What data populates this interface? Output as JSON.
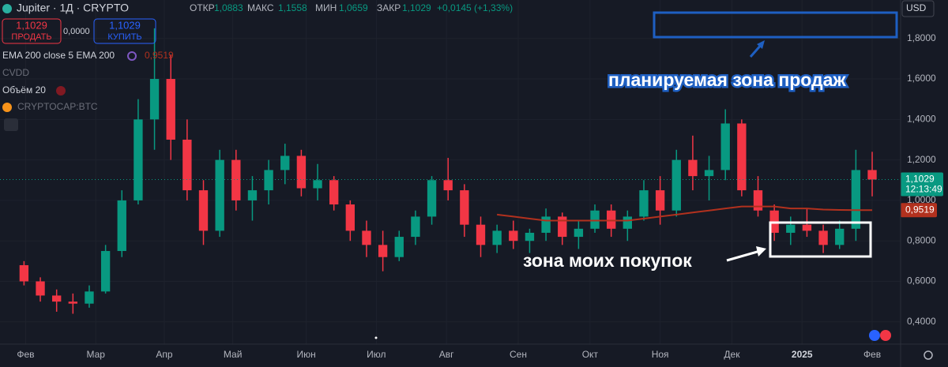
{
  "header": {
    "symbol": "Jupiter · 1Д · CRYPTO",
    "open_label": "ОТКР",
    "open": "1,0883",
    "high_label": "МАКС",
    "high": "1,1558",
    "low_label": "МИН",
    "low": "1,0659",
    "close_label": "ЗАКР",
    "close": "1,1029",
    "change": "+0,0145 (+1,33%)",
    "currency": "USD"
  },
  "trade": {
    "sell_price": "1,1029",
    "sell": "ПРОДАТЬ",
    "spread": "0,0000",
    "buy_price": "1,1029",
    "buy": "КУПИТЬ"
  },
  "indicators": [
    "CVDD",
    "Объём 20",
    "CRYPTOCAP:BTC"
  ],
  "chart_data": {
    "type": "candlestick",
    "open": [
      0.68,
      0.6,
      0.53,
      0.5,
      0.49,
      0.55,
      0.75,
      1.0,
      1.4,
      1.6,
      1.3,
      1.05,
      0.85,
      1.2,
      1.0,
      1.05,
      1.15,
      1.22,
      1.06,
      1.1,
      0.98,
      0.85,
      0.78,
      0.72,
      0.82,
      0.92,
      1.1,
      1.05,
      0.88,
      0.78,
      0.85,
      0.8,
      0.84,
      0.92,
      0.82,
      0.86,
      0.95,
      0.86,
      0.92,
      1.05,
      0.95,
      1.2,
      1.12,
      1.15,
      1.38,
      1.05,
      0.95,
      0.84,
      0.88,
      0.85,
      0.78,
      0.86,
      1.15
    ],
    "high": [
      0.7,
      0.62,
      0.56,
      0.54,
      0.58,
      0.78,
      1.05,
      1.5,
      1.85,
      1.72,
      1.4,
      1.1,
      1.25,
      1.25,
      1.12,
      1.2,
      1.28,
      1.25,
      1.18,
      1.12,
      1.0,
      0.9,
      0.85,
      0.85,
      0.95,
      1.12,
      1.21,
      1.08,
      0.92,
      0.88,
      0.9,
      0.86,
      0.96,
      0.94,
      0.9,
      0.98,
      0.98,
      0.95,
      1.1,
      1.12,
      1.25,
      1.32,
      1.22,
      1.45,
      1.4,
      1.12,
      0.98,
      0.92,
      0.96,
      0.88,
      0.9,
      1.25,
      1.24
    ],
    "low": [
      0.58,
      0.5,
      0.45,
      0.44,
      0.47,
      0.54,
      0.72,
      0.98,
      1.25,
      1.2,
      1.0,
      0.78,
      0.82,
      0.95,
      0.9,
      0.98,
      1.08,
      1.02,
      1.0,
      0.95,
      0.8,
      0.72,
      0.65,
      0.7,
      0.78,
      0.88,
      1.0,
      0.82,
      0.72,
      0.74,
      0.76,
      0.74,
      0.8,
      0.78,
      0.76,
      0.84,
      0.82,
      0.8,
      0.9,
      0.88,
      0.92,
      1.05,
      1.0,
      1.1,
      1.02,
      0.92,
      0.8,
      0.78,
      0.82,
      0.74,
      0.76,
      0.8,
      1.02
    ],
    "close": [
      0.6,
      0.53,
      0.5,
      0.49,
      0.55,
      0.75,
      1.0,
      1.4,
      1.6,
      1.3,
      1.05,
      0.85,
      1.2,
      1.0,
      1.05,
      1.15,
      1.22,
      1.06,
      1.1,
      0.98,
      0.85,
      0.78,
      0.72,
      0.82,
      0.92,
      1.1,
      1.05,
      0.88,
      0.78,
      0.85,
      0.8,
      0.84,
      0.92,
      0.82,
      0.86,
      0.95,
      0.86,
      0.92,
      1.05,
      0.95,
      1.2,
      1.12,
      1.15,
      1.38,
      1.05,
      0.95,
      0.84,
      0.88,
      0.85,
      0.78,
      0.86,
      1.15,
      1.1029
    ],
    "last_label": "1,1029",
    "last_time": "12:13:49",
    "up_color": "#089981",
    "down_color": "#f23645",
    "series": [
      {
        "name": "EMA 200 close 5 EMA 200",
        "color": "#b2311e",
        "last_label": "0,9519",
        "values": [
          null,
          null,
          null,
          null,
          null,
          null,
          null,
          null,
          null,
          null,
          null,
          null,
          null,
          null,
          null,
          null,
          null,
          null,
          null,
          null,
          null,
          null,
          null,
          null,
          null,
          null,
          null,
          null,
          null,
          0.93,
          0.92,
          0.91,
          0.9,
          0.9,
          0.9,
          0.9,
          0.9,
          0.9,
          0.91,
          0.92,
          0.93,
          0.94,
          0.95,
          0.96,
          0.97,
          0.97,
          0.97,
          0.96,
          0.96,
          0.955,
          0.953,
          0.952,
          0.9519
        ]
      }
    ],
    "xlim": [
      -0.6,
      53.5
    ],
    "xticks": [
      {
        "value": 0.1,
        "label": "Фев"
      },
      {
        "value": 4.4,
        "label": "Мар"
      },
      {
        "value": 8.6,
        "label": "Апр"
      },
      {
        "value": 12.8,
        "label": "Май"
      },
      {
        "value": 17.3,
        "label": "Июн"
      },
      {
        "value": 21.6,
        "label": "Июл"
      },
      {
        "value": 25.9,
        "label": "Авг"
      },
      {
        "value": 30.3,
        "label": "Сен"
      },
      {
        "value": 34.7,
        "label": "Окт"
      },
      {
        "value": 39.0,
        "label": "Ноя"
      },
      {
        "value": 43.4,
        "label": "Дек"
      },
      {
        "value": 47.7,
        "label": "2025"
      },
      {
        "value": 52.0,
        "label": "Фев"
      }
    ],
    "ylim": [
      0.29,
      1.99
    ],
    "yticks": [
      {
        "value": 0.4,
        "label": "0,4000"
      },
      {
        "value": 0.6,
        "label": "0,6000"
      },
      {
        "value": 0.8,
        "label": "0,8000"
      },
      {
        "value": 1.0,
        "label": "1,0000"
      },
      {
        "value": 1.2,
        "label": "1,2000"
      },
      {
        "value": 1.4,
        "label": "1,4000"
      },
      {
        "value": 1.6,
        "label": "1,6000"
      },
      {
        "value": 1.8,
        "label": "1,8000"
      }
    ],
    "grid": true,
    "annotations": [
      "планируемая зона продаж",
      "зона моих покупок"
    ]
  }
}
